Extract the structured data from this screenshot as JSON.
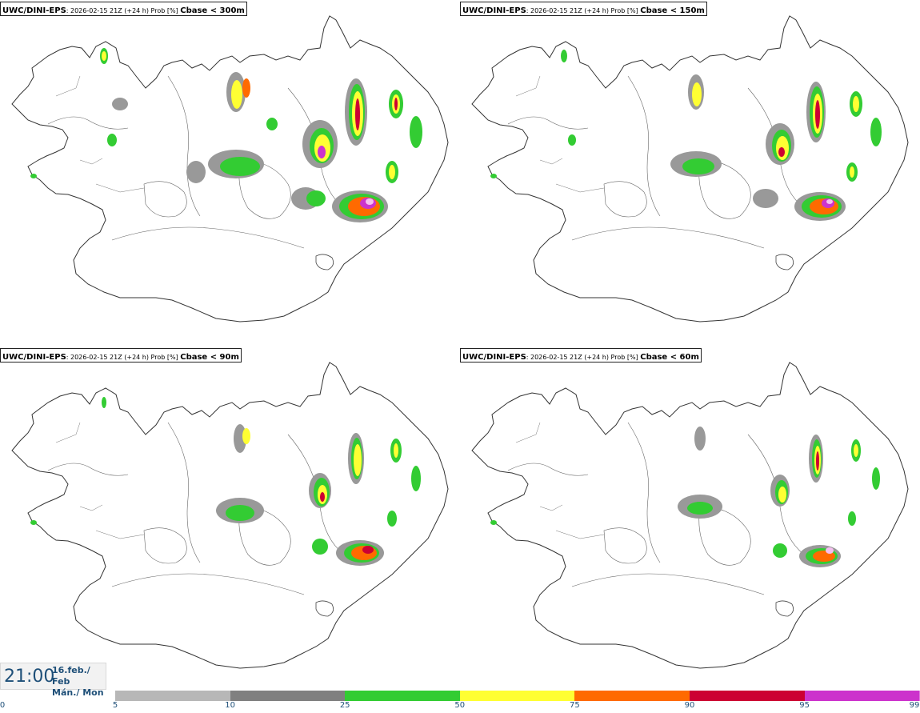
{
  "panels": [
    {
      "model": "UWC/DINI-EPS",
      "info": ": 2026-02-15 21Z (+24 h) Prob [%] ",
      "variable": "Cbase < 300m"
    },
    {
      "model": "UWC/DINI-EPS",
      "info": ": 2026-02-15 21Z (+24 h) Prob [%] ",
      "variable": "Cbase < 150m"
    },
    {
      "model": "UWC/DINI-EPS",
      "info": ": 2026-02-15 21Z (+24 h) Prob [%] ",
      "variable": "Cbase < 90m"
    },
    {
      "model": "UWC/DINI-EPS",
      "info": ": 2026-02-15 21Z (+24 h) Prob [%] ",
      "variable": "Cbase < 60m"
    }
  ],
  "valid_time": {
    "time": "21:00",
    "date_line": "16.feb./ Feb",
    "day_line": "Mán./ Mon"
  },
  "colorbar": {
    "ticks": [
      "0",
      "5",
      "10",
      "25",
      "50",
      "75",
      "90",
      "95",
      "99"
    ],
    "colors": [
      "#b7b7b7",
      "#808080",
      "#33cc33",
      "#ffff33",
      "#ff6a00",
      "#cc0033",
      "#cc33cc",
      "#f5c0f0"
    ]
  }
}
